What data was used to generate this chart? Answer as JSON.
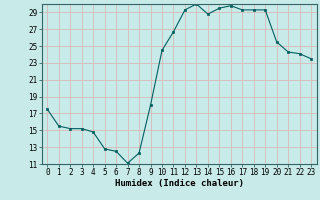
{
  "x": [
    0,
    1,
    2,
    3,
    4,
    5,
    6,
    7,
    8,
    9,
    10,
    11,
    12,
    13,
    14,
    15,
    16,
    17,
    18,
    19,
    20,
    21,
    22,
    23
  ],
  "y": [
    17.5,
    15.5,
    15.2,
    15.2,
    14.8,
    12.8,
    12.5,
    11.1,
    12.3,
    18.0,
    24.5,
    26.7,
    29.3,
    30.0,
    28.8,
    29.5,
    29.8,
    29.3,
    29.3,
    29.3,
    25.5,
    24.3,
    24.1,
    23.5
  ],
  "bg_color": "#c8eae8",
  "line_color": "#006060",
  "marker_color": "#006060",
  "grid_color": "#d8b8b8",
  "xlabel": "Humidex (Indice chaleur)",
  "ylim": [
    11,
    30
  ],
  "xlim": [
    -0.5,
    23.5
  ],
  "yticks": [
    11,
    13,
    15,
    17,
    19,
    21,
    23,
    25,
    27,
    29
  ],
  "xticks": [
    0,
    1,
    2,
    3,
    4,
    5,
    6,
    7,
    8,
    9,
    10,
    11,
    12,
    13,
    14,
    15,
    16,
    17,
    18,
    19,
    20,
    21,
    22,
    23
  ],
  "xtick_labels": [
    "0",
    "1",
    "2",
    "3",
    "4",
    "5",
    "6",
    "7",
    "8",
    "9",
    "10",
    "11",
    "12",
    "13",
    "14",
    "15",
    "16",
    "17",
    "18",
    "19",
    "20",
    "21",
    "22",
    "23"
  ],
  "axis_fontsize": 6.0,
  "tick_fontsize": 5.5,
  "xlabel_fontsize": 6.5
}
